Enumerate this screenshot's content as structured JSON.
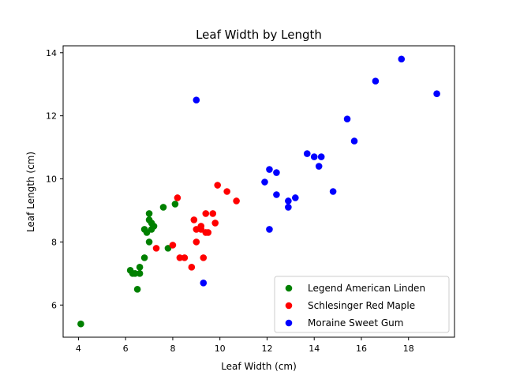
{
  "chart_data": {
    "type": "scatter",
    "title": "Leaf Width by Length",
    "xlabel": "Leaf Width (cm)",
    "ylabel": "Leaf Length (cm)",
    "xlim": [
      3.35,
      19.95
    ],
    "ylim": [
      4.98,
      14.22
    ],
    "xticks": [
      4,
      6,
      8,
      10,
      12,
      14,
      16,
      18
    ],
    "yticks": [
      6,
      8,
      10,
      12,
      14
    ],
    "grid": false,
    "legend_position": "lower-right",
    "series": [
      {
        "name": "Legend American Linden",
        "color": "#008000",
        "points": [
          [
            4.1,
            5.4
          ],
          [
            6.2,
            7.1
          ],
          [
            6.3,
            7.0
          ],
          [
            6.4,
            7.0
          ],
          [
            6.5,
            6.5
          ],
          [
            6.6,
            7.0
          ],
          [
            6.6,
            7.2
          ],
          [
            6.8,
            7.5
          ],
          [
            6.8,
            8.4
          ],
          [
            6.9,
            8.3
          ],
          [
            7.0,
            8.0
          ],
          [
            7.0,
            8.7
          ],
          [
            7.0,
            8.9
          ],
          [
            7.1,
            8.6
          ],
          [
            7.1,
            8.4
          ],
          [
            7.2,
            8.5
          ],
          [
            7.6,
            9.1
          ],
          [
            7.8,
            7.8
          ],
          [
            8.1,
            9.2
          ]
        ]
      },
      {
        "name": "Schlesinger Red Maple",
        "color": "#ff0000",
        "points": [
          [
            7.3,
            7.8
          ],
          [
            8.0,
            7.9
          ],
          [
            8.2,
            9.4
          ],
          [
            8.3,
            7.5
          ],
          [
            8.5,
            7.5
          ],
          [
            8.8,
            7.2
          ],
          [
            8.9,
            8.7
          ],
          [
            9.0,
            8.0
          ],
          [
            9.0,
            8.4
          ],
          [
            9.2,
            8.5
          ],
          [
            9.2,
            8.4
          ],
          [
            9.3,
            7.5
          ],
          [
            9.4,
            8.3
          ],
          [
            9.4,
            8.9
          ],
          [
            9.5,
            8.3
          ],
          [
            9.7,
            8.9
          ],
          [
            9.8,
            8.6
          ],
          [
            9.9,
            9.8
          ],
          [
            10.3,
            9.6
          ],
          [
            10.7,
            9.3
          ]
        ]
      },
      {
        "name": "Moraine Sweet Gum",
        "color": "#0000ff",
        "points": [
          [
            9.0,
            12.5
          ],
          [
            9.3,
            6.7
          ],
          [
            11.9,
            9.9
          ],
          [
            12.1,
            10.3
          ],
          [
            12.1,
            8.4
          ],
          [
            12.4,
            10.2
          ],
          [
            12.4,
            9.5
          ],
          [
            12.9,
            9.3
          ],
          [
            12.9,
            9.1
          ],
          [
            13.2,
            9.4
          ],
          [
            13.7,
            10.8
          ],
          [
            14.0,
            10.7
          ],
          [
            14.2,
            10.4
          ],
          [
            14.3,
            10.7
          ],
          [
            14.8,
            9.6
          ],
          [
            15.4,
            11.9
          ],
          [
            15.7,
            11.2
          ],
          [
            16.6,
            13.1
          ],
          [
            17.7,
            13.8
          ],
          [
            19.2,
            12.7
          ]
        ]
      }
    ]
  }
}
